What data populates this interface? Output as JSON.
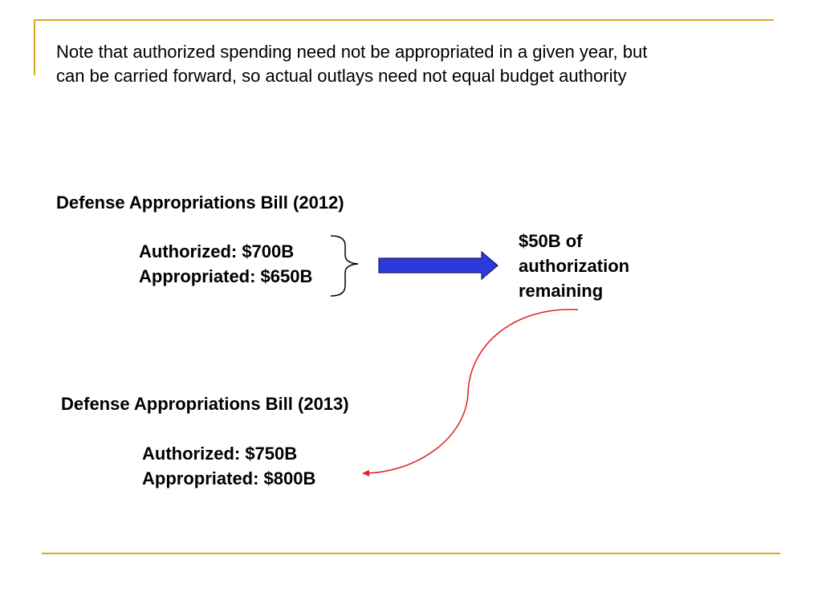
{
  "note": {
    "line1": "Note that authorized spending need not be appropriated in a given year, but",
    "line2": "can be carried forward, so actual outlays need not equal budget authority"
  },
  "bill_2012": {
    "heading": "Defense Appropriations Bill (2012)",
    "authorized": "Authorized: $700B",
    "appropriated": "Appropriated: $650B"
  },
  "remaining": {
    "line1": "$50B of",
    "line2": "authorization",
    "line3": "remaining"
  },
  "bill_2013": {
    "heading": "Defense Appropriations Bill (2013)",
    "authorized": "Authorized: $750B",
    "appropriated": "Appropriated: $800B"
  },
  "colors": {
    "accent_rule": "#d8a62a",
    "block_arrow_fill": "#2b3bdb",
    "curved_arrow": "#e02020"
  },
  "icons": {
    "bracket": "right-brace-icon",
    "block_arrow": "block-arrow-right-icon",
    "curved_arrow": "curved-arrow-icon"
  }
}
